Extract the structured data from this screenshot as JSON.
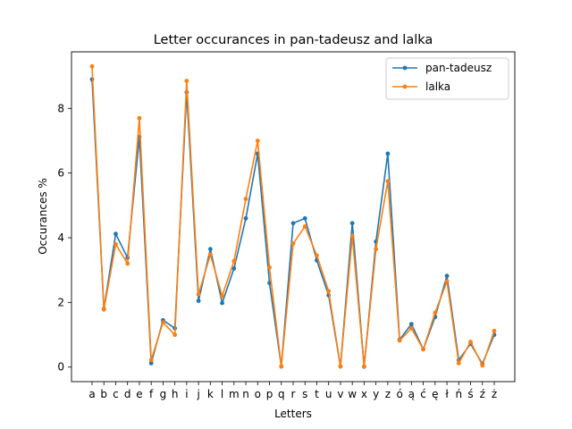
{
  "chart_data": {
    "type": "line",
    "title": "Letter occurances in pan-tadeusz and lalka",
    "xlabel": "Letters",
    "ylabel": "Occurances %",
    "categories": [
      "a",
      "b",
      "c",
      "d",
      "e",
      "f",
      "g",
      "h",
      "i",
      "j",
      "k",
      "l",
      "m",
      "n",
      "o",
      "p",
      "q",
      "r",
      "s",
      "t",
      "u",
      "v",
      "w",
      "x",
      "y",
      "z",
      "ó",
      "ą",
      "ć",
      "ę",
      "ł",
      "ń",
      "ś",
      "ź",
      "ż"
    ],
    "yticks": [
      0,
      2,
      4,
      6,
      8
    ],
    "ylim": [
      -0.45,
      9.75
    ],
    "grid": false,
    "legend_position": "top-right",
    "series": [
      {
        "name": "pan-tadeusz",
        "color": "#1f77b4",
        "values": [
          8.9,
          1.8,
          4.12,
          3.38,
          7.12,
          0.12,
          1.45,
          1.2,
          8.5,
          2.05,
          3.65,
          1.98,
          3.05,
          4.6,
          6.6,
          2.6,
          0.02,
          4.45,
          4.6,
          3.3,
          2.22,
          0.02,
          4.45,
          0.01,
          3.88,
          6.6,
          0.85,
          1.33,
          0.55,
          1.55,
          2.82,
          0.22,
          0.72,
          0.1,
          1.0
        ]
      },
      {
        "name": "lalka",
        "color": "#ff7f0e",
        "values": [
          9.3,
          1.78,
          3.8,
          3.2,
          7.7,
          0.22,
          1.38,
          1.0,
          8.85,
          2.25,
          3.48,
          2.2,
          3.28,
          5.2,
          7.0,
          3.08,
          0.02,
          3.82,
          4.35,
          3.45,
          2.35,
          0.02,
          4.05,
          0.02,
          3.65,
          5.75,
          0.82,
          1.2,
          0.55,
          1.68,
          2.65,
          0.12,
          0.78,
          0.05,
          1.12
        ]
      }
    ]
  }
}
